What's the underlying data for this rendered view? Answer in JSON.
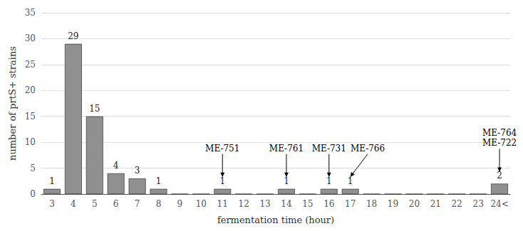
{
  "chart_data": {
    "type": "bar",
    "categories": [
      "3",
      "4",
      "5",
      "6",
      "7",
      "8",
      "9",
      "10",
      "11",
      "12",
      "13",
      "14",
      "15",
      "16",
      "17",
      "18",
      "19",
      "20",
      "21",
      "22",
      "23",
      "24<"
    ],
    "values": [
      1,
      29,
      15,
      4,
      3,
      1,
      0,
      0,
      1,
      0,
      0,
      1,
      0,
      1,
      1,
      0,
      0,
      0,
      0,
      0,
      0,
      2
    ],
    "value_labels": [
      "1",
      "29",
      "15",
      "4",
      "3",
      "1",
      null,
      null,
      "1",
      null,
      null,
      "1",
      null,
      "1",
      "1",
      null,
      null,
      null,
      null,
      null,
      null,
      "2"
    ],
    "data_labels": true,
    "color": "#909090",
    "xlabel": "fermentation time (hour)",
    "ylabel": "number of prtS+ strains",
    "ylim": [
      0,
      35
    ],
    "yticks": [
      0,
      5,
      10,
      15,
      20,
      25,
      30,
      35
    ],
    "grid": true,
    "annotations": [
      {
        "text": "ME-751",
        "category": "11"
      },
      {
        "text": "ME-761",
        "category": "14"
      },
      {
        "text": "ME-731",
        "category": "16"
      },
      {
        "text": "ME-766",
        "category": "17"
      },
      {
        "text": "ME-764",
        "category": "24<"
      },
      {
        "text": "ME-722",
        "category": "24<"
      }
    ]
  }
}
